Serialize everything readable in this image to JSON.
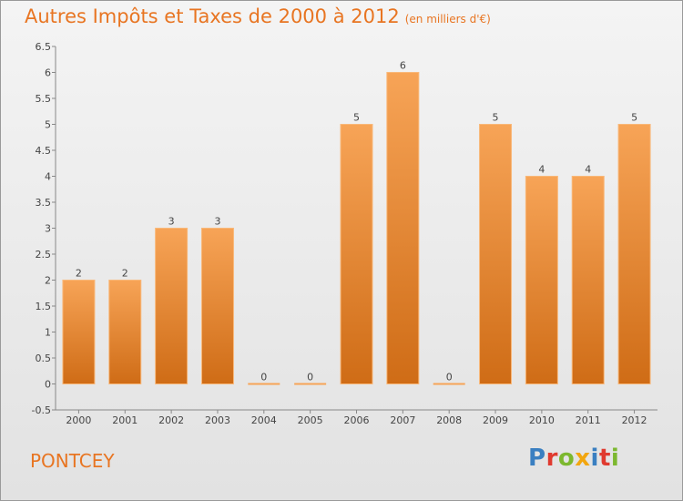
{
  "title": "Autres Impôts et Taxes de 2000 à 2012",
  "subtitle": "(en milliers d'€)",
  "commune": "PONTCEY",
  "logo_letters": [
    {
      "char": "P",
      "color": "#3a7fc1"
    },
    {
      "char": "r",
      "color": "#e03a2f"
    },
    {
      "char": "o",
      "color": "#7cb82f"
    },
    {
      "char": "x",
      "color": "#f2a60f"
    },
    {
      "char": "i",
      "color": "#3a7fc1"
    },
    {
      "char": "t",
      "color": "#e03a2f"
    },
    {
      "char": "i",
      "color": "#7cb82f"
    }
  ],
  "colors": {
    "bar_top": "#f7a457",
    "bar_bottom": "#cf6c16",
    "title": "#e87522"
  },
  "chart_data": {
    "type": "bar",
    "categories": [
      "2000",
      "2001",
      "2002",
      "2003",
      "2004",
      "2005",
      "2006",
      "2007",
      "2008",
      "2009",
      "2010",
      "2011",
      "2012"
    ],
    "values": [
      2,
      2,
      3,
      3,
      0,
      0,
      5,
      6,
      0,
      5,
      4,
      4,
      5
    ],
    "data_labels": [
      "2",
      "2",
      "3",
      "3",
      "0",
      "0",
      "5",
      "6",
      "0",
      "5",
      "4",
      "4",
      "5"
    ],
    "yticks": [
      "-0.5",
      "0",
      "0.5",
      "1",
      "1.5",
      "2",
      "2.5",
      "3",
      "3.5",
      "4",
      "4.5",
      "5",
      "5.5",
      "6",
      "6.5"
    ],
    "ylim": [
      -0.5,
      6.5
    ],
    "grid": false,
    "legend": "none"
  }
}
